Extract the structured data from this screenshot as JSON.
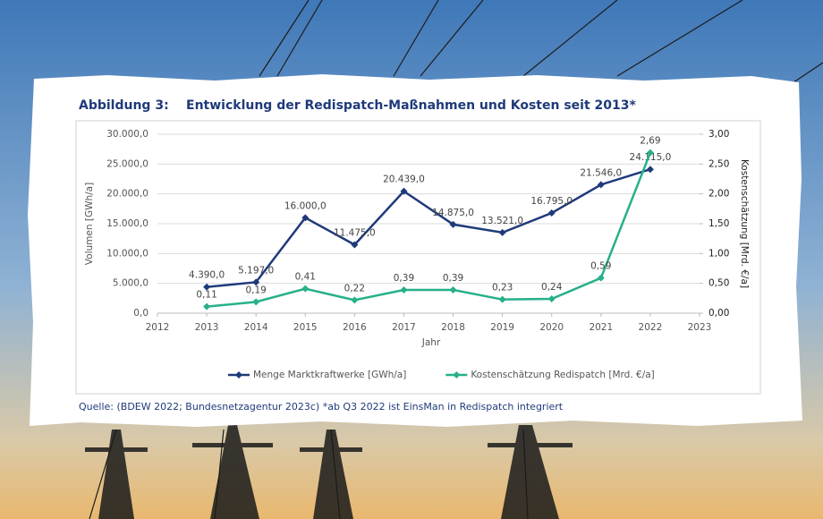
{
  "chart_data": {
    "type": "line",
    "figure_label": "Abbildung 3:",
    "title": "Entwicklung der Redispatch-Maßnahmen und Kosten seit 2013*",
    "xlabel": "Jahr",
    "ylabel": "Volumen [GWh/a]",
    "y2label": "Kostenschätzung [Mrd. €/a]",
    "source": "Quelle: (BDEW 2022; Bundesnetzagentur 2023c) *ab Q3 2022 ist EinsMan in Redispatch integriert",
    "x": [
      2013,
      2014,
      2015,
      2016,
      2017,
      2018,
      2019,
      2020,
      2021,
      2022
    ],
    "xlim": [
      2012,
      2023
    ],
    "xticks": [
      2012,
      2013,
      2014,
      2015,
      2016,
      2017,
      2018,
      2019,
      2020,
      2021,
      2022,
      2023
    ],
    "ylim": [
      0,
      30000
    ],
    "yticks": [
      {
        "value": 0,
        "label": "0,0"
      },
      {
        "value": 5000,
        "label": "5.000,0"
      },
      {
        "value": 10000,
        "label": "10.000,0"
      },
      {
        "value": 15000,
        "label": "15.000,0"
      },
      {
        "value": 20000,
        "label": "20.000,0"
      },
      {
        "value": 25000,
        "label": "25.000,0"
      },
      {
        "value": 30000,
        "label": "30.000,0"
      }
    ],
    "y2lim": [
      0,
      3
    ],
    "y2ticks": [
      {
        "value": 0,
        "label": "0,00"
      },
      {
        "value": 0.5,
        "label": "0,50"
      },
      {
        "value": 1,
        "label": "1,00"
      },
      {
        "value": 1.5,
        "label": "1,50"
      },
      {
        "value": 2,
        "label": "2,00"
      },
      {
        "value": 2.5,
        "label": "2,50"
      },
      {
        "value": 3,
        "label": "3,00"
      }
    ],
    "grid": true,
    "legend": "bottom",
    "series": [
      {
        "name": "Menge Marktkraftwerke [GWh/a]",
        "color": "#1f3a7a",
        "axis": "y",
        "values": [
          4390,
          5197,
          16000,
          11475,
          20439,
          14875,
          13521,
          16795,
          21546,
          24115
        ],
        "value_labels": [
          "4.390,0",
          "5.197,0",
          "16.000,0",
          "11.475,0",
          "20.439,0",
          "14.875,0",
          "13.521,0",
          "16.795,0",
          "21.546,0",
          "24.115,0"
        ]
      },
      {
        "name": "Kostenschätzung Redispatch [Mrd. €/a]",
        "color": "#26b08a",
        "axis": "y2",
        "values": [
          0.11,
          0.19,
          0.41,
          0.22,
          0.39,
          0.39,
          0.23,
          0.24,
          0.59,
          2.69
        ],
        "value_labels": [
          "0,11",
          "0,19",
          "0,41",
          "0,22",
          "0,39",
          "0,39",
          "0,23",
          "0,24",
          "0,59",
          "2,69"
        ]
      }
    ]
  }
}
